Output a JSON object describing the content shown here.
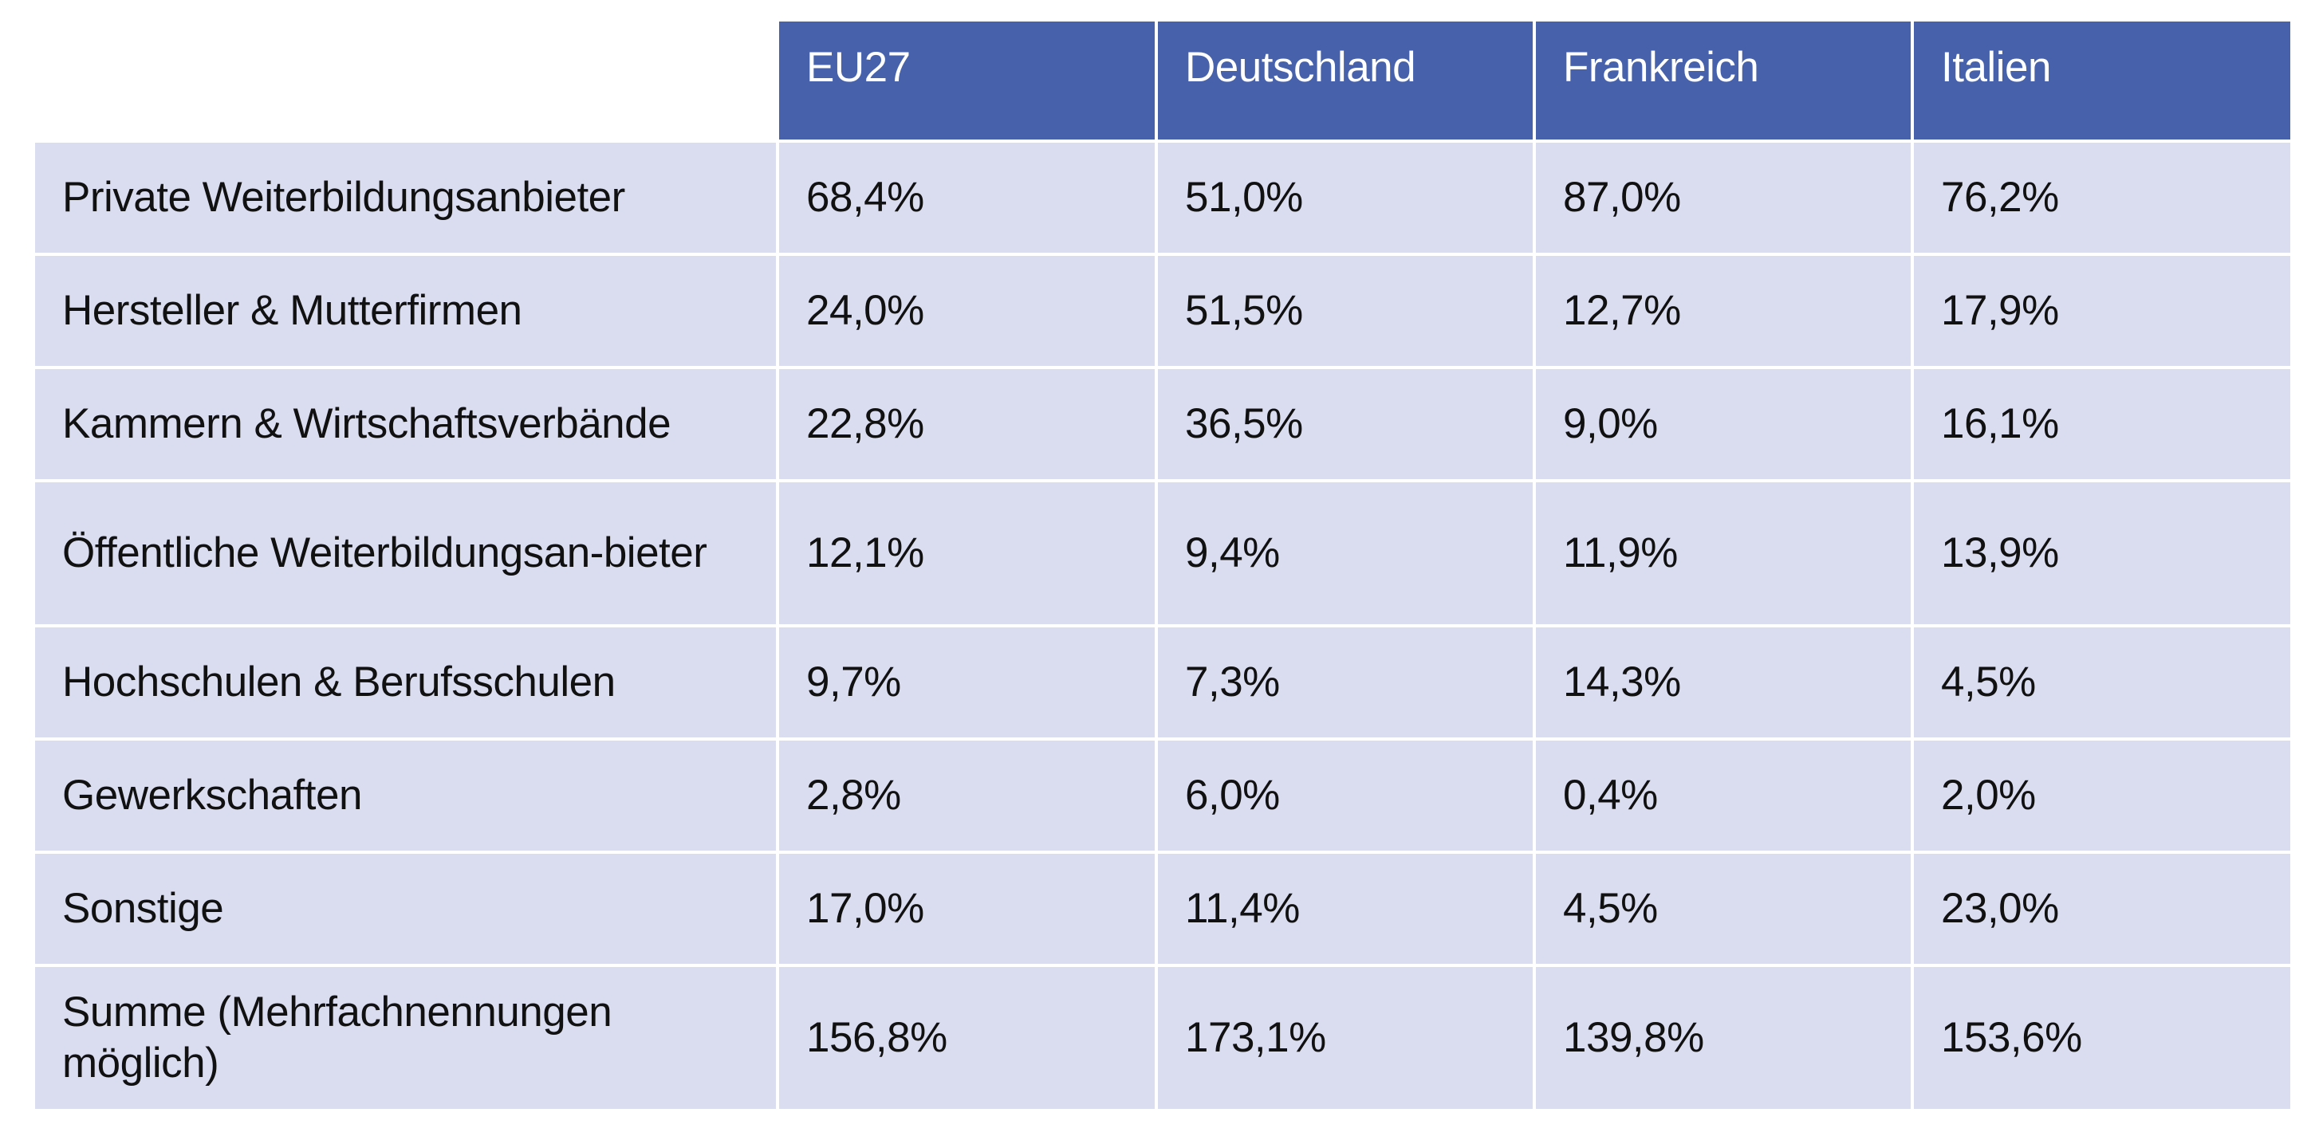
{
  "table": {
    "colors": {
      "header_bg": "#4762AB",
      "header_text": "#FFFFFF",
      "body_bg": "#DADDF0",
      "body_text": "#111111",
      "grid_line": "#FFFFFF"
    },
    "columns": [
      "EU27",
      "Deutschland",
      "Frankreich",
      "Italien"
    ],
    "rows": [
      {
        "label": "Private Weiterbildungsanbieter",
        "values": [
          "68,4%",
          "51,0%",
          "87,0%",
          "76,2%"
        ]
      },
      {
        "label": "Hersteller & Mutterfirmen",
        "values": [
          "24,0%",
          "51,5%",
          "12,7%",
          "17,9%"
        ]
      },
      {
        "label": "Kammern & Wirtschaftsverbände",
        "values": [
          "22,8%",
          "36,5%",
          "9,0%",
          "16,1%"
        ]
      },
      {
        "label": "Öffentliche Weiterbildungsan-bieter",
        "values": [
          "12,1%",
          "9,4%",
          "11,9%",
          "13,9%"
        ]
      },
      {
        "label": "Hochschulen & Berufsschulen",
        "values": [
          "9,7%",
          "7,3%",
          "14,3%",
          "4,5%"
        ]
      },
      {
        "label": "Gewerkschaften",
        "values": [
          "2,8%",
          "6,0%",
          "0,4%",
          "2,0%"
        ]
      },
      {
        "label": "Sonstige",
        "values": [
          "17,0%",
          "11,4%",
          "4,5%",
          "23,0%"
        ]
      },
      {
        "label": "Summe (Mehrfachnennungen möglich)",
        "values": [
          "156,8%",
          "173,1%",
          "139,8%",
          "153,6%"
        ]
      }
    ]
  }
}
